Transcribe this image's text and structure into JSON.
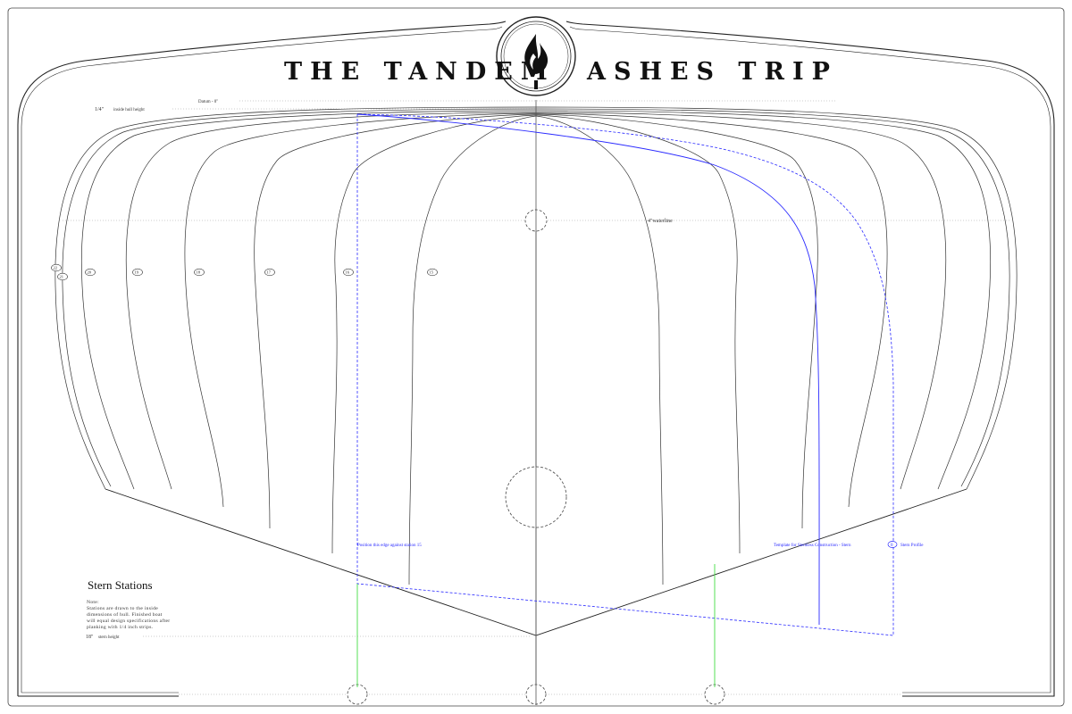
{
  "title": {
    "left": "THE TANDEM",
    "right": "ASHES TRIP"
  },
  "emblem": {
    "icon": "flame-icon"
  },
  "labels": {
    "datum": "Datum - 0\"",
    "inside_height": "1/4\"",
    "inside_height_text": "inside hull height",
    "waterline": "4\"waterline",
    "stern_height": "18\"",
    "stern_height_text": "stern  height",
    "position_edge": "Position this edge against station 15",
    "template": "Template for Stemless Construction - Stern",
    "stern_profile": "Stern Profile",
    "stern_profile_tag": "0"
  },
  "stations": [
    "22",
    "21",
    "20",
    "19",
    "18",
    "17",
    "16",
    "15"
  ],
  "section": {
    "title": "Stern Stations",
    "note_lines": [
      "Note:",
      "Stations are drawn to the inside",
      "dimensions of hull. Finished boat",
      "will equal design specifications after",
      "planking with 1/4 inch strips."
    ]
  },
  "colors": {
    "frame": "#222222",
    "hull_lines": "#333333",
    "template_line": "#2a2aff",
    "reference_line": "#44dd44",
    "dotted_guides": "#999999"
  }
}
